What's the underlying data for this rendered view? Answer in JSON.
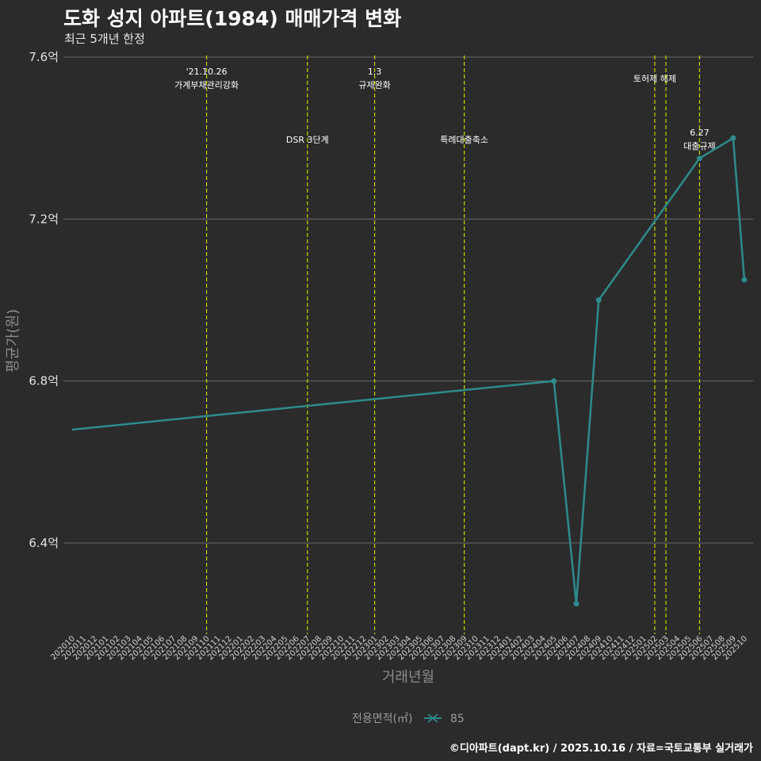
{
  "title": "도화 성지 아파트(1984) 매매가격 변화",
  "subtitle": "최근 5개년 한정",
  "footer": "©디아파트(dapt.kr) / 2025.10.16 / 자료=국토교통부 실거래가",
  "colors": {
    "background": "#2b2b2b",
    "line": "#2e8b8b",
    "grid": "#6a6a6a",
    "event_line": "#c8d400"
  },
  "chart_data": {
    "type": "line",
    "title": "도화 성지 아파트(1984) 매매가격 변화",
    "xlabel": "거래년월",
    "ylabel": "평균가(원)",
    "ylim": [
      6.2,
      7.62
    ],
    "y_ticks": [
      6.4,
      6.8,
      7.2,
      7.6
    ],
    "y_tick_labels": [
      "6.4억",
      "6.8억",
      "7.2억",
      "7.6억"
    ],
    "categories": [
      "202010",
      "202011",
      "202012",
      "202101",
      "202102",
      "202103",
      "202104",
      "202105",
      "202106",
      "202107",
      "202108",
      "202109",
      "202110",
      "202111",
      "202112",
      "202201",
      "202202",
      "202203",
      "202204",
      "202205",
      "202206",
      "202207",
      "202208",
      "202209",
      "202210",
      "202211",
      "202212",
      "202301",
      "202302",
      "202303",
      "202304",
      "202305",
      "202306",
      "202307",
      "202308",
      "202309",
      "202310",
      "202311",
      "202312",
      "202401",
      "202402",
      "202403",
      "202404",
      "202405",
      "202406",
      "202407",
      "202408",
      "202409",
      "202410",
      "202411",
      "202412",
      "202501",
      "202502",
      "202503",
      "202504",
      "202505",
      "202506",
      "202507",
      "202508",
      "202509",
      "202510"
    ],
    "series": [
      {
        "name": "85",
        "points": [
          {
            "x": "202010",
            "y": 6.68,
            "marker": false
          },
          {
            "x": "202405",
            "y": 6.8,
            "marker": true
          },
          {
            "x": "202407",
            "y": 6.25,
            "marker": true
          },
          {
            "x": "202409",
            "y": 7.0,
            "marker": true
          },
          {
            "x": "202506",
            "y": 7.35,
            "marker": true
          },
          {
            "x": "202509",
            "y": 7.4,
            "marker": true
          },
          {
            "x": "202510",
            "y": 7.05,
            "marker": true
          }
        ]
      }
    ],
    "events": [
      {
        "x": "202110",
        "lines": [
          "'21.10.26",
          "가계부채관리강화"
        ],
        "level": "high"
      },
      {
        "x": "202207",
        "lines": [
          "DSR 3단계"
        ],
        "level": "low"
      },
      {
        "x": "202301",
        "lines": [
          "1.3",
          "규제완화"
        ],
        "level": "high"
      },
      {
        "x": "202309",
        "lines": [
          "특례대출축소"
        ],
        "level": "low"
      },
      {
        "x": "202502",
        "lines": [
          "토허제 해제"
        ],
        "level": "high"
      },
      {
        "x": "202503",
        "lines": [],
        "level": "none"
      },
      {
        "x": "202506",
        "lines": [
          "6.27",
          "대출규제"
        ],
        "level": "low"
      }
    ],
    "legend": {
      "title": "전용면적(㎡)",
      "items": [
        "85"
      ],
      "position": "bottom"
    }
  }
}
